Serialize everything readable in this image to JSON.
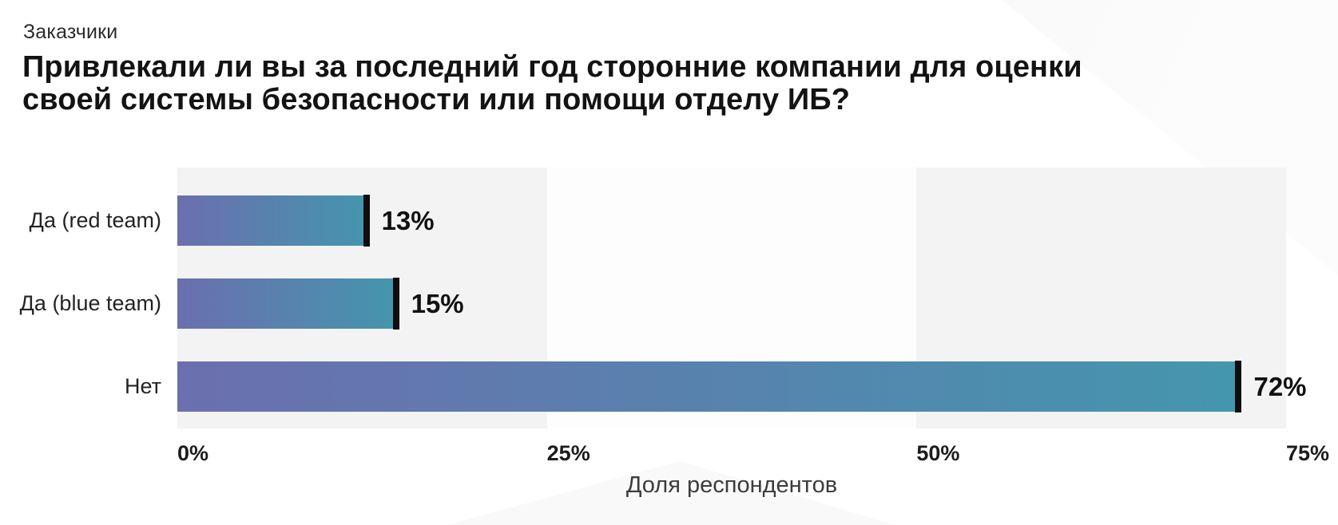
{
  "page": {
    "background": "#ffffff"
  },
  "header": {
    "eyebrow": "Заказчики",
    "title_lines": [
      "Привлекали ли вы за последний год сторонние компании для оценки",
      "своей системы безопасности или помощи отделу ИБ?"
    ]
  },
  "chart_data": {
    "type": "bar",
    "orientation": "horizontal",
    "title": "Привлекали ли вы за последний год сторонние компании для оценки своей системы безопасности или помощи отделу ИБ?",
    "categories": [
      "Да (red team)",
      "Да (blue team)",
      "Нет"
    ],
    "values": [
      13,
      15,
      72
    ],
    "value_labels": [
      "13%",
      "15%",
      "72%"
    ],
    "xlabel": "Доля респондентов",
    "ylabel": "",
    "xlim": [
      0,
      75
    ],
    "x_ticks": [
      {
        "value": 0,
        "label": "0%"
      },
      {
        "value": 25,
        "label": "25%"
      },
      {
        "value": 50,
        "label": "50%"
      },
      {
        "value": 75,
        "label": "75%"
      }
    ],
    "grid": "off",
    "legend": "none",
    "colors": {
      "bar_gradient_start": "#6b6fae",
      "bar_gradient_end": "#4496ae",
      "bar_end_cap": "#0e0e0e",
      "band_alt": "#f3f3f4",
      "band_base": "#fdfdfd",
      "value_label": "#111111",
      "category_label": "#232323",
      "tick_label": "#1c1c1c",
      "axis_label": "#3c3c3c"
    }
  }
}
